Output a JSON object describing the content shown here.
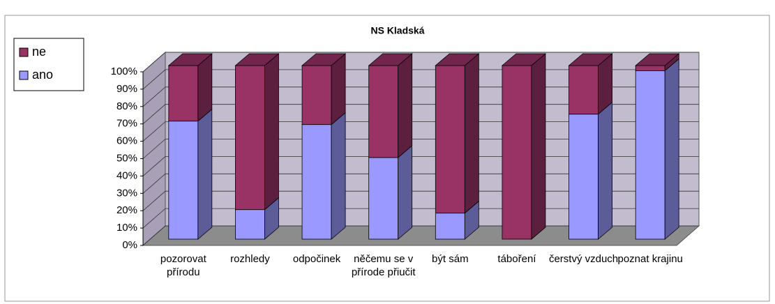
{
  "chart_data": {
    "type": "bar3d_stacked",
    "title": "NS Kladská",
    "categories": [
      "pozorovat přírodu",
      "rozhledy",
      "odpočinek",
      "něčemu se v přírode přiučit",
      "být sám",
      "táboření",
      "čerstvý vzduch",
      "poznat krajinu"
    ],
    "series": [
      {
        "name": "ano",
        "color": "#9999ff",
        "values": [
          68,
          17,
          66,
          47,
          15,
          0,
          72,
          97
        ]
      },
      {
        "name": "ne",
        "color": "#993366",
        "values": [
          32,
          83,
          34,
          53,
          85,
          100,
          28,
          3
        ]
      }
    ],
    "ylim": [
      0,
      100
    ],
    "yticks": [
      {
        "value": 0,
        "label": "0%"
      },
      {
        "value": 10,
        "label": "10%"
      },
      {
        "value": 20,
        "label": "20%"
      },
      {
        "value": 30,
        "label": "30%"
      },
      {
        "value": 40,
        "label": "40%"
      },
      {
        "value": 50,
        "label": "50%"
      },
      {
        "value": 60,
        "label": "60%"
      },
      {
        "value": 70,
        "label": "70%"
      },
      {
        "value": 80,
        "label": "80%"
      },
      {
        "value": 90,
        "label": "90%"
      },
      {
        "value": 100,
        "label": "100%"
      }
    ],
    "grid": true,
    "legend": "top-left"
  }
}
